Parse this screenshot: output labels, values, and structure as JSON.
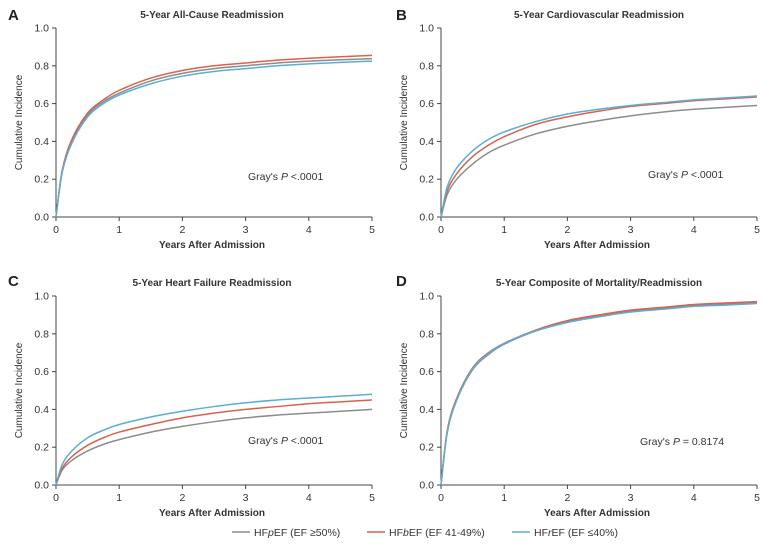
{
  "figure": {
    "legend": {
      "placement": "bottom-center",
      "entries": [
        {
          "name": "HFpEF (EF ≥50%)",
          "color": "#8c8c8c"
        },
        {
          "name": "HFbEF (EF 41-49%)",
          "color": "#d9624e"
        },
        {
          "name": "HFrEF (EF ≤40%)",
          "color": "#5aaed2"
        }
      ]
    }
  },
  "chart_data": [
    {
      "type": "line",
      "letter": "A",
      "title": "5-Year All-Cause Readmission",
      "xlabel": "Years After Admission",
      "ylabel": "Cumulative Incidence",
      "xlim": [
        0,
        5
      ],
      "ylim": [
        0,
        1.0
      ],
      "xticks": [
        "0",
        "1",
        "2",
        "3",
        "4",
        "5"
      ],
      "yticks": [
        "0.0",
        "0.2",
        "0.4",
        "0.6",
        "0.8",
        "1.0"
      ],
      "annotation": "Gray's P <.0001",
      "x": [
        0,
        0.1,
        0.25,
        0.5,
        0.75,
        1,
        1.5,
        2,
        2.5,
        3,
        3.5,
        4,
        4.5,
        5
      ],
      "series": [
        {
          "name": "HFpEF (EF ≥50%)",
          "color": "#8c8c8c",
          "values": [
            0,
            0.24,
            0.4,
            0.54,
            0.61,
            0.655,
            0.72,
            0.76,
            0.785,
            0.8,
            0.815,
            0.825,
            0.832,
            0.838
          ]
        },
        {
          "name": "HFbEF (EF 41-49%)",
          "color": "#d9624e",
          "values": [
            0,
            0.25,
            0.41,
            0.55,
            0.62,
            0.67,
            0.735,
            0.775,
            0.8,
            0.815,
            0.83,
            0.84,
            0.848,
            0.855
          ]
        },
        {
          "name": "HFrEF (EF ≤40%)",
          "color": "#5aaed2",
          "values": [
            0,
            0.24,
            0.39,
            0.53,
            0.6,
            0.645,
            0.705,
            0.745,
            0.77,
            0.785,
            0.8,
            0.81,
            0.818,
            0.825
          ]
        }
      ]
    },
    {
      "type": "line",
      "letter": "B",
      "title": "5-Year Cardiovascular Readmission",
      "xlabel": "Years After Admission",
      "ylabel": "Cumulative Incidence",
      "xlim": [
        0,
        5
      ],
      "ylim": [
        0,
        1.0
      ],
      "xticks": [
        "0",
        "1",
        "2",
        "3",
        "4",
        "5"
      ],
      "yticks": [
        "0.0",
        "0.2",
        "0.4",
        "0.6",
        "0.8",
        "1.0"
      ],
      "annotation": "Gray's P <.0001",
      "x": [
        0,
        0.1,
        0.25,
        0.5,
        0.75,
        1,
        1.5,
        2,
        2.5,
        3,
        3.5,
        4,
        4.5,
        5
      ],
      "series": [
        {
          "name": "HFpEF (EF ≥50%)",
          "color": "#8c8c8c",
          "values": [
            0,
            0.12,
            0.2,
            0.28,
            0.34,
            0.38,
            0.44,
            0.48,
            0.51,
            0.535,
            0.555,
            0.57,
            0.58,
            0.59
          ]
        },
        {
          "name": "HFbEF (EF 41-49%)",
          "color": "#d9624e",
          "values": [
            0,
            0.14,
            0.23,
            0.32,
            0.38,
            0.425,
            0.49,
            0.53,
            0.56,
            0.585,
            0.6,
            0.615,
            0.625,
            0.635
          ]
        },
        {
          "name": "HFrEF (EF ≤40%)",
          "color": "#5aaed2",
          "values": [
            0,
            0.16,
            0.26,
            0.35,
            0.41,
            0.45,
            0.505,
            0.545,
            0.57,
            0.59,
            0.605,
            0.62,
            0.63,
            0.64
          ]
        }
      ]
    },
    {
      "type": "line",
      "letter": "C",
      "title": "5-Year Heart Failure Readmission",
      "xlabel": "Years After Admission",
      "ylabel": "Cumulative Incidence",
      "xlim": [
        0,
        5
      ],
      "ylim": [
        0,
        1.0
      ],
      "xticks": [
        "0",
        "1",
        "2",
        "3",
        "4",
        "5"
      ],
      "yticks": [
        "0.0",
        "0.2",
        "0.4",
        "0.6",
        "0.8",
        "1.0"
      ],
      "annotation": "Gray's P <.0001",
      "x": [
        0,
        0.1,
        0.25,
        0.5,
        0.75,
        1,
        1.5,
        2,
        2.5,
        3,
        3.5,
        4,
        4.5,
        5
      ],
      "series": [
        {
          "name": "HFpEF (EF ≥50%)",
          "color": "#8c8c8c",
          "values": [
            0,
            0.08,
            0.13,
            0.18,
            0.215,
            0.24,
            0.28,
            0.31,
            0.335,
            0.355,
            0.37,
            0.38,
            0.39,
            0.4
          ]
        },
        {
          "name": "HFbEF (EF 41-49%)",
          "color": "#d9624e",
          "values": [
            0,
            0.09,
            0.15,
            0.21,
            0.25,
            0.28,
            0.32,
            0.355,
            0.38,
            0.4,
            0.415,
            0.43,
            0.44,
            0.45
          ]
        },
        {
          "name": "HFrEF (EF ≤40%)",
          "color": "#5aaed2",
          "values": [
            0,
            0.11,
            0.18,
            0.25,
            0.29,
            0.32,
            0.36,
            0.39,
            0.415,
            0.435,
            0.45,
            0.46,
            0.47,
            0.48
          ]
        }
      ]
    },
    {
      "type": "line",
      "letter": "D",
      "title": "5-Year Composite of Mortality/Readmission",
      "xlabel": "Years After Admission",
      "ylabel": "Cumulative Incidence",
      "xlim": [
        0,
        5
      ],
      "ylim": [
        0,
        1.0
      ],
      "xticks": [
        "0",
        "1",
        "2",
        "3",
        "4",
        "5"
      ],
      "yticks": [
        "0.0",
        "0.2",
        "0.4",
        "0.6",
        "0.8",
        "1.0"
      ],
      "annotation": "Gray's P = 0.8174",
      "x": [
        0,
        0.1,
        0.25,
        0.5,
        0.75,
        1,
        1.5,
        2,
        2.5,
        3,
        3.5,
        4,
        4.5,
        5
      ],
      "series": [
        {
          "name": "HFpEF (EF ≥50%)",
          "color": "#8c8c8c",
          "values": [
            0,
            0.28,
            0.45,
            0.61,
            0.69,
            0.745,
            0.815,
            0.865,
            0.895,
            0.92,
            0.935,
            0.95,
            0.958,
            0.965
          ]
        },
        {
          "name": "HFbEF (EF 41-49%)",
          "color": "#d9624e",
          "values": [
            0,
            0.29,
            0.46,
            0.62,
            0.7,
            0.75,
            0.82,
            0.87,
            0.9,
            0.925,
            0.94,
            0.955,
            0.963,
            0.97
          ]
        },
        {
          "name": "HFrEF (EF ≤40%)",
          "color": "#5aaed2",
          "values": [
            0,
            0.28,
            0.45,
            0.615,
            0.695,
            0.75,
            0.815,
            0.86,
            0.89,
            0.915,
            0.93,
            0.945,
            0.952,
            0.96
          ]
        }
      ]
    }
  ]
}
